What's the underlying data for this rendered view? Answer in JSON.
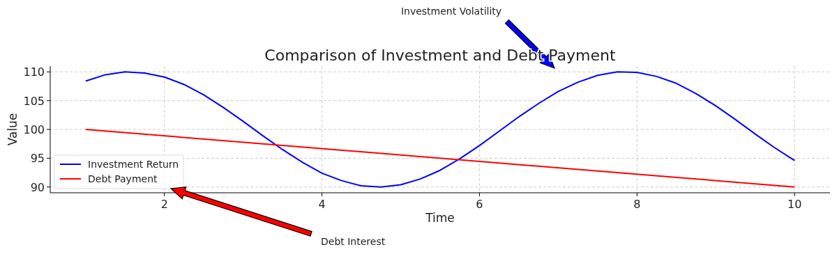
{
  "chart_data": {
    "type": "line",
    "title": "Comparison of Investment and Debt Payment",
    "xlabel": "Time",
    "ylabel": "Value",
    "xlim": [
      0.55,
      10.45
    ],
    "ylim": [
      89,
      111
    ],
    "xticks": [
      2,
      4,
      6,
      8,
      10
    ],
    "yticks": [
      90,
      95,
      100,
      105,
      110
    ],
    "grid": true,
    "legend": "bottom left",
    "line_style": "solid",
    "marker": "none",
    "series": [
      {
        "name": "Investment Return",
        "color": "#0000ff",
        "x": [
          1,
          1.25,
          1.5,
          1.75,
          2,
          2.25,
          2.5,
          2.75,
          3,
          3.25,
          3.5,
          3.75,
          4,
          4.25,
          4.5,
          4.75,
          5,
          5.25,
          5.5,
          5.75,
          6,
          6.25,
          6.5,
          6.75,
          7,
          7.25,
          7.5,
          7.75,
          8,
          8.25,
          8.5,
          8.75,
          9,
          9.25,
          9.5,
          9.75,
          10
        ],
        "values": [
          108.4,
          109.5,
          110,
          109.8,
          109.1,
          107.8,
          106,
          103.8,
          101.4,
          98.9,
          96.5,
          94.3,
          92.4,
          91.1,
          90.2,
          90,
          90.4,
          91.4,
          92.9,
          94.9,
          97.2,
          99.7,
          102.2,
          104.5,
          106.6,
          108.2,
          109.4,
          110,
          109.9,
          109.2,
          108,
          106.2,
          104.1,
          101.7,
          99.2,
          96.8,
          94.6
        ]
      },
      {
        "name": "Debt Payment",
        "color": "#ff0000",
        "x": [
          1,
          10
        ],
        "values": [
          100,
          90
        ]
      }
    ],
    "annotations": [
      "Investment Volatility",
      "Debt Interest"
    ]
  }
}
